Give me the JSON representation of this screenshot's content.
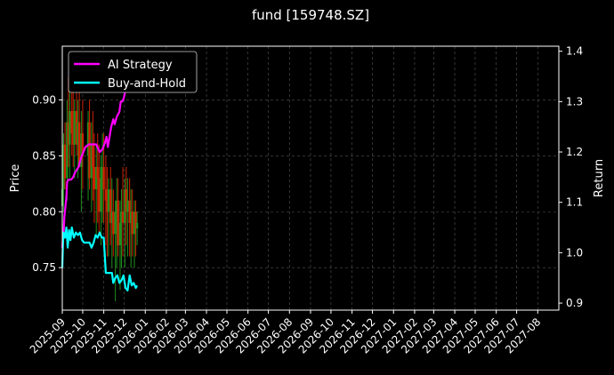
{
  "chart_data": {
    "type": "line",
    "title": "fund [159748.SZ]",
    "xlabel": "",
    "ylabel": "Price",
    "y2label": "Return",
    "grid": true,
    "legend_placement": "top-left",
    "xlim": [
      "2025-09-01",
      "2027-09-01"
    ],
    "ylim": [
      0.712,
      0.948
    ],
    "y2lim": [
      0.886,
      1.41
    ],
    "x_ticks": [
      "2025-09",
      "2025-10",
      "2025-11",
      "2025-12",
      "2026-01",
      "2026-02",
      "2026-03",
      "2026-04",
      "2026-05",
      "2026-06",
      "2026-07",
      "2026-08",
      "2026-09",
      "2026-10",
      "2026-11",
      "2026-12",
      "2027-01",
      "2027-02",
      "2027-03",
      "2027-04",
      "2027-05",
      "2027-06",
      "2027-07",
      "2027-08"
    ],
    "y_ticks": [
      0.75,
      0.8,
      0.85,
      0.9
    ],
    "y2_ticks": [
      0.9,
      1.0,
      1.1,
      1.2,
      1.3,
      1.4
    ],
    "colors": {
      "up": "#1f8f1f",
      "down": "#cc2200",
      "ai": "#ff00ff",
      "bh": "#00ffff",
      "grid": "#555555"
    },
    "series": [
      {
        "name": "AI Strategy",
        "axis": "return",
        "x": [
          "2025-09-01",
          "2025-09-02",
          "2025-09-03",
          "2025-09-04",
          "2025-09-07",
          "2025-09-08",
          "2025-09-10",
          "2025-09-14",
          "2025-09-17",
          "2025-09-20",
          "2025-09-25",
          "2025-09-29",
          "2025-10-05",
          "2025-10-10",
          "2025-10-16",
          "2025-10-21",
          "2025-10-26",
          "2025-10-30",
          "2025-11-03",
          "2025-11-05",
          "2025-11-07",
          "2025-11-12",
          "2025-11-15",
          "2025-11-17",
          "2025-11-20",
          "2025-11-24",
          "2025-11-26",
          "2025-11-28",
          "2025-11-30",
          "2025-12-04",
          "2025-12-08",
          "2025-12-12",
          "2025-12-16",
          "2025-12-20"
        ],
        "values": [
          1.01,
          1.03,
          1.04,
          1.07,
          1.11,
          1.14,
          1.145,
          1.145,
          1.15,
          1.16,
          1.17,
          1.19,
          1.21,
          1.215,
          1.215,
          1.215,
          1.2,
          1.205,
          1.22,
          1.23,
          1.21,
          1.25,
          1.265,
          1.255,
          1.27,
          1.28,
          1.3,
          1.3,
          1.305,
          1.33,
          1.34,
          1.35,
          1.36,
          1.37
        ]
      },
      {
        "name": "Buy-and-Hold",
        "axis": "return",
        "x": [
          "2025-09-01",
          "2025-09-02",
          "2025-09-03",
          "2025-09-05",
          "2025-09-07",
          "2025-09-09",
          "2025-09-11",
          "2025-09-13",
          "2025-09-15",
          "2025-09-18",
          "2025-09-21",
          "2025-09-24",
          "2025-09-27",
          "2025-09-30",
          "2025-10-03",
          "2025-10-05",
          "2025-10-08",
          "2025-10-11",
          "2025-10-14",
          "2025-10-17",
          "2025-10-20",
          "2025-10-23",
          "2025-10-26",
          "2025-10-29",
          "2025-11-01",
          "2025-11-04",
          "2025-11-07",
          "2025-11-10",
          "2025-11-13",
          "2025-11-15",
          "2025-11-18",
          "2025-11-21",
          "2025-11-24",
          "2025-11-27",
          "2025-11-30",
          "2025-12-03",
          "2025-12-06",
          "2025-12-09",
          "2025-12-12",
          "2025-12-15",
          "2025-12-18",
          "2025-12-20"
        ],
        "values": [
          0.97,
          1.02,
          1.04,
          1.03,
          1.05,
          1.01,
          1.045,
          1.025,
          1.05,
          1.03,
          1.04,
          1.035,
          1.04,
          1.025,
          1.02,
          1.02,
          1.02,
          1.02,
          1.01,
          1.02,
          1.035,
          1.03,
          1.04,
          1.03,
          1.03,
          0.96,
          0.96,
          0.96,
          0.96,
          0.94,
          0.95,
          0.955,
          0.94,
          0.945,
          0.955,
          0.93,
          0.925,
          0.955,
          0.935,
          0.94,
          0.93,
          0.935
        ]
      }
    ],
    "candles": {
      "name": "Price",
      "axis": "price",
      "x": [
        "2025-09-01",
        "2025-09-03",
        "2025-09-05",
        "2025-09-08",
        "2025-09-10",
        "2025-09-12",
        "2025-09-15",
        "2025-09-17",
        "2025-09-19",
        "2025-09-22",
        "2025-09-24",
        "2025-09-26",
        "2025-09-29",
        "2025-10-01",
        "2025-10-09",
        "2025-10-11",
        "2025-10-14",
        "2025-10-16",
        "2025-10-18",
        "2025-10-21",
        "2025-10-23",
        "2025-10-25",
        "2025-10-28",
        "2025-10-30",
        "2025-11-01",
        "2025-11-04",
        "2025-11-06",
        "2025-11-08",
        "2025-11-11",
        "2025-11-13",
        "2025-11-15",
        "2025-11-18",
        "2025-11-20",
        "2025-11-22",
        "2025-11-25",
        "2025-11-27",
        "2025-11-29",
        "2025-12-02",
        "2025-12-04",
        "2025-12-06",
        "2025-12-09",
        "2025-12-11",
        "2025-12-13",
        "2025-12-16",
        "2025-12-18",
        "2025-12-20"
      ],
      "open": [
        0.805,
        0.82,
        0.86,
        0.83,
        0.88,
        0.86,
        0.89,
        0.87,
        0.86,
        0.89,
        0.86,
        0.88,
        0.84,
        0.87,
        0.85,
        0.88,
        0.83,
        0.86,
        0.84,
        0.82,
        0.84,
        0.83,
        0.8,
        0.84,
        0.84,
        0.82,
        0.81,
        0.8,
        0.82,
        0.79,
        0.8,
        0.78,
        0.8,
        0.81,
        0.77,
        0.79,
        0.8,
        0.79,
        0.82,
        0.8,
        0.81,
        0.79,
        0.8,
        0.78,
        0.8,
        0.785
      ],
      "high": [
        0.83,
        0.87,
        0.88,
        0.9,
        0.92,
        0.91,
        0.93,
        0.91,
        0.9,
        0.92,
        0.9,
        0.91,
        0.89,
        0.9,
        0.89,
        0.9,
        0.88,
        0.89,
        0.87,
        0.86,
        0.87,
        0.86,
        0.85,
        0.87,
        0.87,
        0.85,
        0.84,
        0.83,
        0.84,
        0.83,
        0.82,
        0.81,
        0.83,
        0.83,
        0.81,
        0.82,
        0.84,
        0.83,
        0.84,
        0.83,
        0.83,
        0.82,
        0.82,
        0.81,
        0.81,
        0.8
      ],
      "low": [
        0.78,
        0.8,
        0.82,
        0.81,
        0.84,
        0.83,
        0.85,
        0.84,
        0.83,
        0.85,
        0.83,
        0.84,
        0.8,
        0.82,
        0.81,
        0.82,
        0.8,
        0.81,
        0.79,
        0.78,
        0.79,
        0.78,
        0.77,
        0.79,
        0.79,
        0.77,
        0.76,
        0.76,
        0.77,
        0.75,
        0.76,
        0.72,
        0.75,
        0.76,
        0.73,
        0.75,
        0.76,
        0.75,
        0.77,
        0.76,
        0.76,
        0.75,
        0.76,
        0.75,
        0.76,
        0.77
      ],
      "close": [
        0.82,
        0.86,
        0.83,
        0.88,
        0.86,
        0.89,
        0.87,
        0.86,
        0.89,
        0.86,
        0.88,
        0.84,
        0.87,
        0.85,
        0.88,
        0.83,
        0.86,
        0.84,
        0.82,
        0.84,
        0.83,
        0.8,
        0.84,
        0.84,
        0.82,
        0.81,
        0.8,
        0.82,
        0.79,
        0.8,
        0.78,
        0.8,
        0.81,
        0.77,
        0.79,
        0.8,
        0.79,
        0.82,
        0.8,
        0.81,
        0.79,
        0.8,
        0.78,
        0.8,
        0.785,
        0.79
      ]
    }
  }
}
